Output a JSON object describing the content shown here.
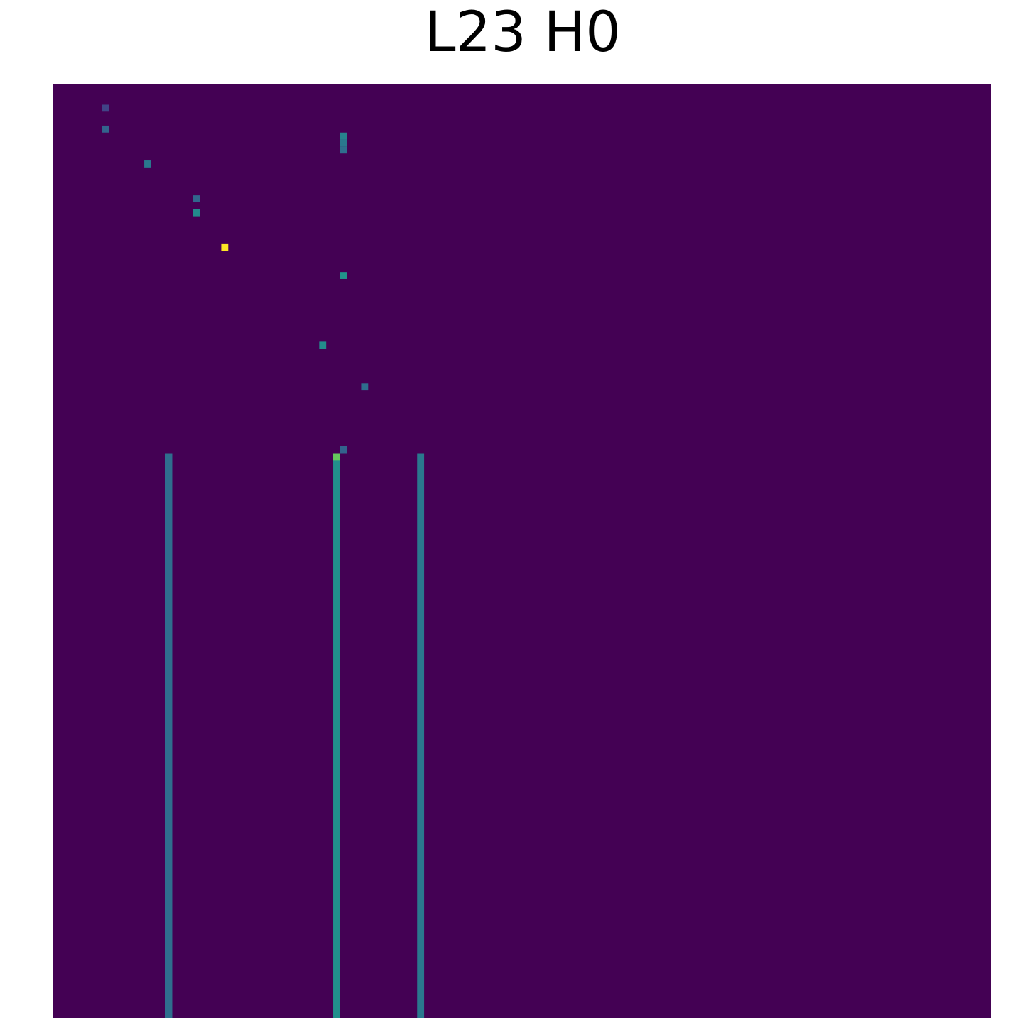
{
  "title": "L23 H0",
  "chart_data": {
    "type": "heatmap",
    "title": "L23 H0",
    "xlabel": "",
    "ylabel": "",
    "axes_visible": false,
    "grid": false,
    "colormap": "viridis",
    "value_range": [
      0,
      1
    ],
    "n_rows": 134,
    "n_cols": 134,
    "stripe_end_row": 134,
    "stripes": [
      {
        "col": 16,
        "from_row": 53,
        "value": 0.45
      },
      {
        "col": 40,
        "from_row": 53,
        "value": 0.62
      },
      {
        "col": 52,
        "from_row": 53,
        "value": 0.5
      }
    ],
    "hot_cells": [
      {
        "row": 7,
        "col": 41,
        "value": 0.55
      },
      {
        "row": 8,
        "col": 41,
        "value": 0.5
      },
      {
        "row": 9,
        "col": 41,
        "value": 0.45
      },
      {
        "row": 6,
        "col": 7,
        "value": 0.4
      },
      {
        "row": 3,
        "col": 7,
        "value": 0.25
      },
      {
        "row": 11,
        "col": 13,
        "value": 0.5
      },
      {
        "row": 16,
        "col": 20,
        "value": 0.42
      },
      {
        "row": 18,
        "col": 20,
        "value": 0.6
      },
      {
        "row": 23,
        "col": 24,
        "value": 1.0
      },
      {
        "row": 27,
        "col": 41,
        "value": 0.65
      },
      {
        "row": 37,
        "col": 38,
        "value": 0.6
      },
      {
        "row": 43,
        "col": 44,
        "value": 0.45
      },
      {
        "row": 52,
        "col": 41,
        "value": 0.4
      },
      {
        "row": 53,
        "col": 40,
        "value": 0.85
      }
    ],
    "background_value": 0.0
  }
}
